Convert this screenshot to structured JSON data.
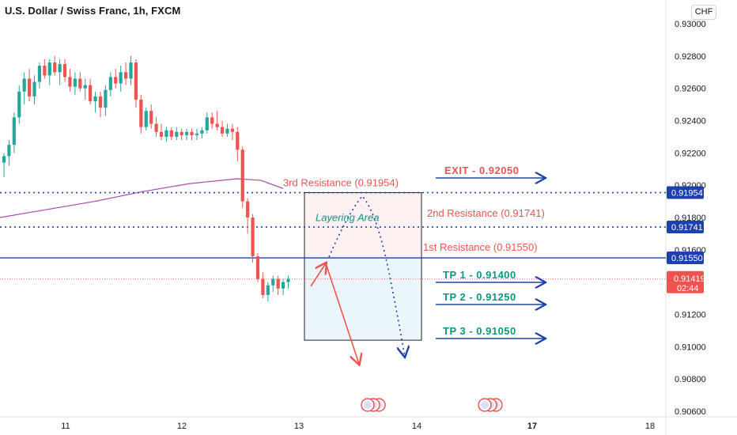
{
  "header": {
    "title": "U.S. Dollar / Swiss Franc, 1h, FXCM",
    "currency": "CHF"
  },
  "colors": {
    "up": "#26a69a",
    "down": "#ef5350",
    "blue": "#1e40af",
    "ma": "#a84ba8",
    "red": "#ef5350",
    "teal": "#089981"
  },
  "chart_data": {
    "type": "candlestick",
    "x_ticks": [
      "11",
      "12",
      "13",
      "14",
      "17",
      "18"
    ],
    "y_ticks": [
      "0.93000",
      "0.92800",
      "0.92600",
      "0.92400",
      "0.92200",
      "0.92000",
      "0.91800",
      "0.91600",
      "0.91200",
      "0.91000",
      "0.90800",
      "0.90600"
    ],
    "ylim": [
      0.906,
      0.931
    ],
    "price_labels": [
      {
        "text": "0.91954",
        "value": 0.91954
      },
      {
        "text": "0.91741",
        "value": 0.91741
      },
      {
        "text": "0.91550",
        "value": 0.9155
      }
    ],
    "current": {
      "price": "0.91419",
      "time": "02:44",
      "value": 0.91419
    },
    "levels": [
      {
        "label": "3rd Resistance (0.91954)",
        "value": 0.91954
      },
      {
        "label": "2nd Resistance (0.91741)",
        "value": 0.91741
      },
      {
        "label": "1st Resistance (0.91550)",
        "value": 0.9155
      }
    ],
    "targets": [
      {
        "label": "EXIT - 0.92050",
        "value": 0.9205
      },
      {
        "label": "TP 1 - 0.91400",
        "value": 0.914
      },
      {
        "label": "TP 2 - 0.91250",
        "value": 0.9125
      },
      {
        "label": "TP 3 - 0.91050",
        "value": 0.9105
      }
    ],
    "zone_label": "Layering Area",
    "candles": [
      [
        0.9214,
        0.922,
        0.9205,
        0.9218
      ],
      [
        0.9218,
        0.9228,
        0.9212,
        0.9225
      ],
      [
        0.9225,
        0.9245,
        0.922,
        0.9242
      ],
      [
        0.9242,
        0.9262,
        0.9238,
        0.9258
      ],
      [
        0.9258,
        0.927,
        0.925,
        0.9266
      ],
      [
        0.9266,
        0.9272,
        0.9252,
        0.9255
      ],
      [
        0.9255,
        0.9268,
        0.925,
        0.9264
      ],
      [
        0.9264,
        0.9276,
        0.926,
        0.9274
      ],
      [
        0.9274,
        0.9278,
        0.9266,
        0.9268
      ],
      [
        0.9268,
        0.9278,
        0.9262,
        0.9276
      ],
      [
        0.9276,
        0.928,
        0.9268,
        0.927
      ],
      [
        0.927,
        0.9278,
        0.9262,
        0.9275
      ],
      [
        0.9275,
        0.9278,
        0.9264,
        0.9267
      ],
      [
        0.9267,
        0.9272,
        0.9258,
        0.9261
      ],
      [
        0.9261,
        0.927,
        0.9256,
        0.9266
      ],
      [
        0.9266,
        0.927,
        0.9258,
        0.926
      ],
      [
        0.926,
        0.9266,
        0.9253,
        0.9262
      ],
      [
        0.9262,
        0.9266,
        0.925,
        0.9252
      ],
      [
        0.9252,
        0.9258,
        0.9245,
        0.9255
      ],
      [
        0.9255,
        0.9258,
        0.9242,
        0.9248
      ],
      [
        0.9248,
        0.9262,
        0.9243,
        0.9259
      ],
      [
        0.9259,
        0.927,
        0.9255,
        0.9267
      ],
      [
        0.9267,
        0.9272,
        0.926,
        0.9263
      ],
      [
        0.9263,
        0.9274,
        0.9258,
        0.927
      ],
      [
        0.927,
        0.9276,
        0.9262,
        0.9266
      ],
      [
        0.9266,
        0.928,
        0.9262,
        0.9276
      ],
      [
        0.9276,
        0.9278,
        0.9248,
        0.9253
      ],
      [
        0.9253,
        0.9256,
        0.9232,
        0.9236
      ],
      [
        0.9236,
        0.9248,
        0.9234,
        0.9246
      ],
      [
        0.9246,
        0.925,
        0.9235,
        0.9238
      ],
      [
        0.9238,
        0.9242,
        0.923,
        0.9233
      ],
      [
        0.9233,
        0.9238,
        0.9228,
        0.923
      ],
      [
        0.923,
        0.9236,
        0.9227,
        0.9234
      ],
      [
        0.9234,
        0.9236,
        0.9228,
        0.923
      ],
      [
        0.923,
        0.9236,
        0.9228,
        0.9233
      ],
      [
        0.9233,
        0.9235,
        0.9228,
        0.9231
      ],
      [
        0.9231,
        0.9235,
        0.9228,
        0.9233
      ],
      [
        0.9233,
        0.9235,
        0.9228,
        0.9231
      ],
      [
        0.9231,
        0.9235,
        0.9228,
        0.9232
      ],
      [
        0.9232,
        0.9236,
        0.9229,
        0.9234
      ],
      [
        0.9234,
        0.9245,
        0.9232,
        0.9242
      ],
      [
        0.9242,
        0.9245,
        0.9235,
        0.9238
      ],
      [
        0.9238,
        0.9246,
        0.9234,
        0.9236
      ],
      [
        0.9236,
        0.924,
        0.923,
        0.9232
      ],
      [
        0.9232,
        0.9238,
        0.923,
        0.9235
      ],
      [
        0.9235,
        0.9238,
        0.9228,
        0.9233
      ],
      [
        0.9233,
        0.9236,
        0.9215,
        0.9222
      ],
      [
        0.9222,
        0.9224,
        0.9186,
        0.919
      ],
      [
        0.919,
        0.9192,
        0.917,
        0.918
      ],
      [
        0.918,
        0.9182,
        0.9152,
        0.9156
      ],
      [
        0.9156,
        0.9158,
        0.914,
        0.9142
      ],
      [
        0.9142,
        0.9146,
        0.913,
        0.9132
      ],
      [
        0.9132,
        0.914,
        0.9128,
        0.9138
      ],
      [
        0.9138,
        0.9144,
        0.9134,
        0.9142
      ],
      [
        0.9142,
        0.9144,
        0.9132,
        0.9136
      ],
      [
        0.9136,
        0.9142,
        0.9132,
        0.914
      ],
      [
        0.914,
        0.9144,
        0.9136,
        0.9142
      ]
    ]
  }
}
